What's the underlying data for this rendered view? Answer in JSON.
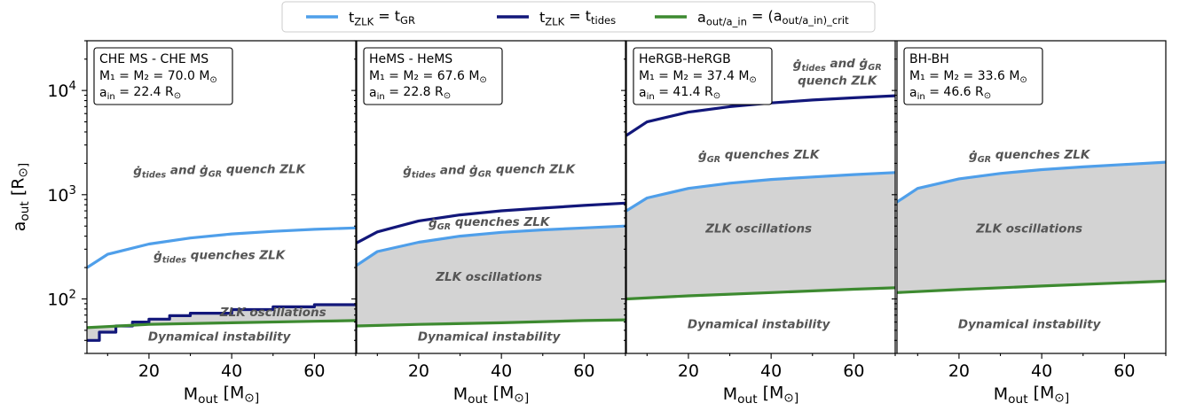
{
  "legend": [
    {
      "label": "t_ZLK = t_GR",
      "color": "#4f9fea"
    },
    {
      "label": "t_ZLK = t_tides",
      "color": "#12177a"
    },
    {
      "label": "a_out/a_in = (a_out/a_in)_crit",
      "color": "#3d8a30"
    }
  ],
  "colors": {
    "fill": "#d3d3d3",
    "gr": "#4f9fea",
    "tides": "#12177a",
    "crit": "#3d8a30"
  },
  "chart_data": [
    {
      "type": "line",
      "scale_y": "log",
      "xlim": [
        5,
        70
      ],
      "ylim": [
        30,
        30000
      ],
      "xticks": [
        20,
        40,
        60
      ],
      "xlabel": "M_out [M_⊙]",
      "ylabel": "a_out [R_⊙]",
      "yticks": [
        "10^2",
        "10^3",
        "10^4"
      ],
      "info": [
        "CHE MS - CHE MS",
        "M₁ = M₂ = 70.0 M_⊙",
        "a_in = 22.4 R_⊙"
      ],
      "regions": [
        {
          "text": "ġ_tides and ġ_GR quench ZLK",
          "x": 37,
          "y": 1700
        },
        {
          "text": "ġ_tides quenches ZLK",
          "x": 37,
          "y": 260
        },
        {
          "text": "ZLK oscillations",
          "x": 50,
          "y": 75
        },
        {
          "text": "Dynamical instability",
          "x": 37,
          "y": 44
        }
      ],
      "series": [
        {
          "key": "gr",
          "x": [
            5,
            10,
            20,
            30,
            40,
            50,
            60,
            70
          ],
          "y": [
            200,
            268,
            336,
            384,
            420,
            445,
            465,
            480
          ]
        },
        {
          "key": "tides",
          "step": true,
          "x": [
            5,
            8,
            12,
            16,
            20,
            25,
            30,
            40,
            50,
            60,
            70
          ],
          "y": [
            40,
            48,
            55,
            60,
            64,
            69,
            73,
            79,
            84,
            88,
            91
          ]
        },
        {
          "key": "crit",
          "x": [
            5,
            20,
            40,
            60,
            70
          ],
          "y": [
            53,
            57,
            59,
            61,
            62
          ]
        }
      ],
      "fill_between": [
        "crit",
        "tides"
      ]
    },
    {
      "type": "line",
      "scale_y": "log",
      "xlim": [
        5,
        70
      ],
      "ylim": [
        30,
        30000
      ],
      "xticks": [
        20,
        40,
        60
      ],
      "xlabel": "M_out [M_⊙]",
      "info": [
        "HeMS - HeMS",
        "M₁ = M₂ = 67.6 M_⊙",
        "a_in = 22.8 R_⊙"
      ],
      "regions": [
        {
          "text": "ġ_tides and ġ_GR quench ZLK",
          "x": 37,
          "y": 1700
        },
        {
          "text": "ġ_GR quenches ZLK",
          "x": 37,
          "y": 540
        },
        {
          "text": "ZLK oscillations",
          "x": 37,
          "y": 165
        },
        {
          "text": "Dynamical instability",
          "x": 37,
          "y": 44
        }
      ],
      "series": [
        {
          "key": "gr",
          "x": [
            5,
            10,
            20,
            30,
            40,
            50,
            60,
            70
          ],
          "y": [
            210,
            285,
            350,
            400,
            435,
            460,
            480,
            500
          ]
        },
        {
          "key": "tides",
          "x": [
            5,
            10,
            20,
            30,
            40,
            50,
            60,
            70
          ],
          "y": [
            345,
            440,
            560,
            640,
            700,
            745,
            790,
            830
          ]
        },
        {
          "key": "crit",
          "x": [
            5,
            20,
            40,
            60,
            70
          ],
          "y": [
            55,
            57,
            59,
            62,
            63
          ]
        }
      ],
      "fill_between": [
        "crit",
        "gr"
      ]
    },
    {
      "type": "line",
      "scale_y": "log",
      "xlim": [
        5,
        70
      ],
      "ylim": [
        30,
        30000
      ],
      "xticks": [
        20,
        40,
        60
      ],
      "xlabel": "M_out [M_⊙]",
      "info": [
        "HeRGB-HeRGB",
        "M₁ = M₂ = 37.4 M_⊙",
        "a_in = 41.4 R_⊙"
      ],
      "regions": [
        {
          "text": "ġ_tides and ġ_GR",
          "x": 56,
          "y": 18000
        },
        {
          "text": "quench ZLK",
          "x": 56,
          "y": 12500
        },
        {
          "text": "ġ_GR quenches ZLK",
          "x": 37,
          "y": 2400
        },
        {
          "text": "ZLK oscillations",
          "x": 37,
          "y": 480
        },
        {
          "text": "Dynamical instability",
          "x": 37,
          "y": 58
        }
      ],
      "series": [
        {
          "key": "gr",
          "x": [
            5,
            10,
            20,
            30,
            40,
            50,
            60,
            70
          ],
          "y": [
            700,
            930,
            1150,
            1290,
            1400,
            1480,
            1560,
            1630
          ]
        },
        {
          "key": "tides",
          "x": [
            5,
            10,
            20,
            30,
            40,
            50,
            60,
            70
          ],
          "y": [
            3700,
            5000,
            6200,
            7000,
            7600,
            8100,
            8500,
            8900
          ]
        },
        {
          "key": "crit",
          "x": [
            5,
            20,
            40,
            60,
            70
          ],
          "y": [
            100,
            107,
            115,
            124,
            128
          ]
        }
      ],
      "fill_between": [
        "crit",
        "gr"
      ]
    },
    {
      "type": "line",
      "scale_y": "log",
      "xlim": [
        5,
        70
      ],
      "ylim": [
        30,
        30000
      ],
      "xticks": [
        20,
        40,
        60
      ],
      "xlabel": "M_out [M_⊙]",
      "info": [
        "BH-BH",
        "M₁ = M₂ = 33.6 M_⊙",
        "a_in = 46.6 R_⊙"
      ],
      "regions": [
        {
          "text": "ġ_GR quenches ZLK",
          "x": 37,
          "y": 2400
        },
        {
          "text": "ZLK oscillations",
          "x": 37,
          "y": 480
        },
        {
          "text": "Dynamical instability",
          "x": 37,
          "y": 58
        }
      ],
      "series": [
        {
          "key": "gr",
          "x": [
            5,
            10,
            20,
            30,
            40,
            50,
            60,
            70
          ],
          "y": [
            850,
            1150,
            1420,
            1600,
            1740,
            1850,
            1950,
            2050
          ]
        },
        {
          "key": "crit",
          "x": [
            5,
            20,
            40,
            60,
            70
          ],
          "y": [
            115,
            123,
            133,
            143,
            148
          ]
        }
      ],
      "fill_between": [
        "crit",
        "gr"
      ]
    }
  ]
}
